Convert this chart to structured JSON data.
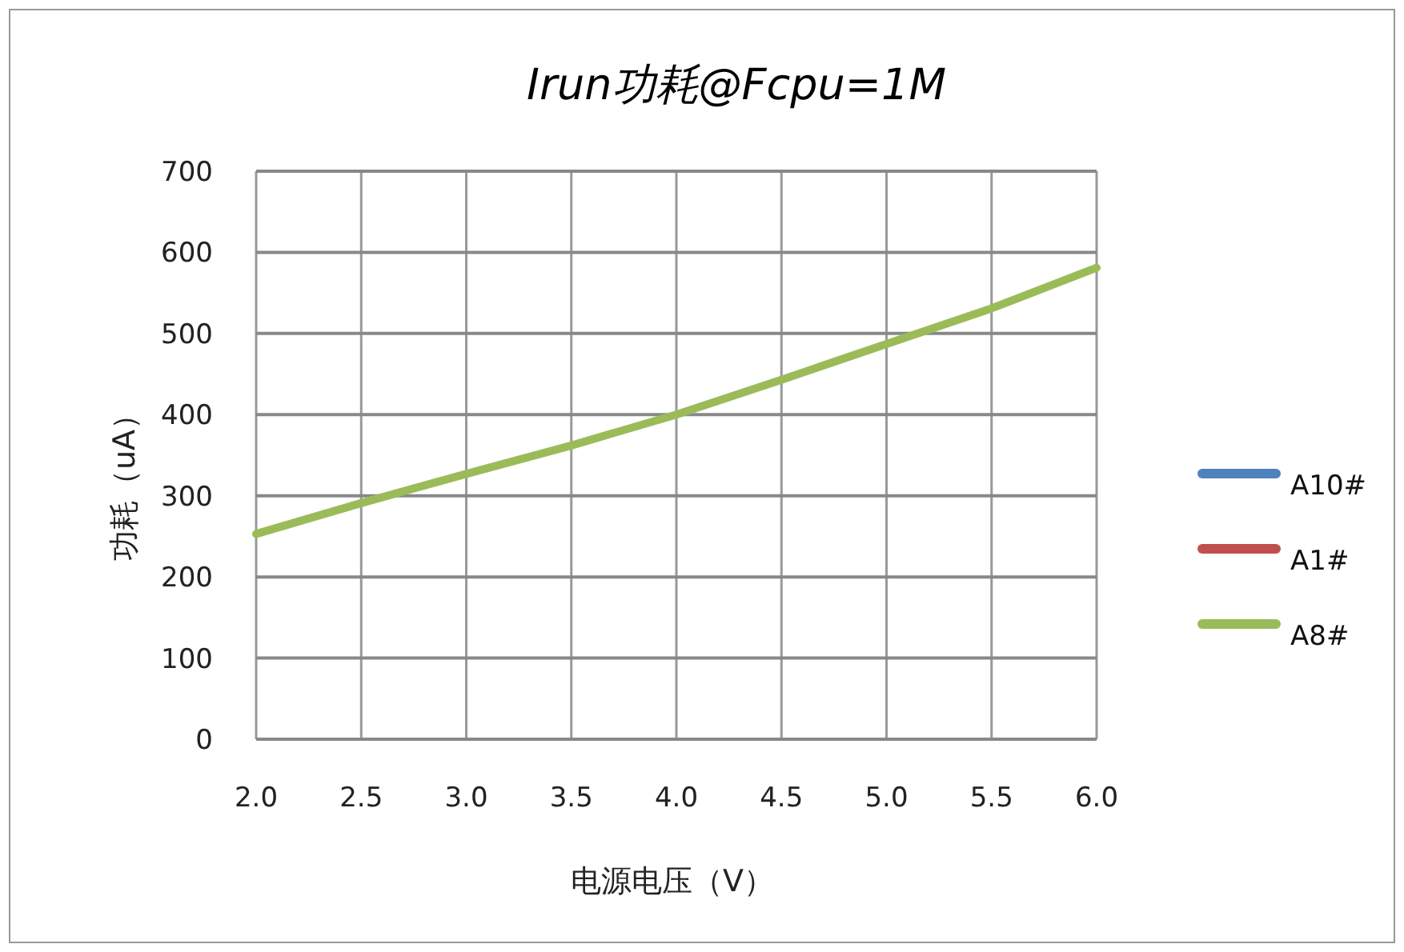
{
  "chart_data": {
    "type": "line",
    "title": "Irun功耗@Fcpu=1M",
    "xlabel": "电源电压（V）",
    "ylabel": "功耗（uA）",
    "x": [
      2.0,
      2.5,
      3.0,
      3.5,
      4.0,
      4.5,
      5.0,
      5.5,
      6.0
    ],
    "series": [
      {
        "name": "A10#",
        "color": "#4f81bd",
        "values": [
          null,
          null,
          null,
          null,
          null,
          null,
          null,
          null,
          null
        ]
      },
      {
        "name": "A1#",
        "color": "#c0504d",
        "values": [
          null,
          null,
          null,
          null,
          null,
          null,
          null,
          null,
          null
        ]
      },
      {
        "name": "A8#",
        "color": "#9bbb59",
        "values": [
          253,
          291,
          327,
          362,
          400,
          443,
          487,
          531,
          581
        ]
      }
    ],
    "xlim": [
      2.0,
      6.0
    ],
    "xticks": [
      {
        "value": 2.0,
        "label": "2.0"
      },
      {
        "value": 2.5,
        "label": "2.5"
      },
      {
        "value": 3.0,
        "label": "3.0"
      },
      {
        "value": 3.5,
        "label": "3.5"
      },
      {
        "value": 4.0,
        "label": "4.0"
      },
      {
        "value": 4.5,
        "label": "4.5"
      },
      {
        "value": 5.0,
        "label": "5.0"
      },
      {
        "value": 5.5,
        "label": "5.5"
      },
      {
        "value": 6.0,
        "label": "6.0"
      }
    ],
    "ylim": [
      0,
      700
    ],
    "yticks": [
      0,
      100,
      200,
      300,
      400,
      500,
      600,
      700
    ],
    "grid": true,
    "legend": "right",
    "marker": "none",
    "line_style": "solid"
  }
}
